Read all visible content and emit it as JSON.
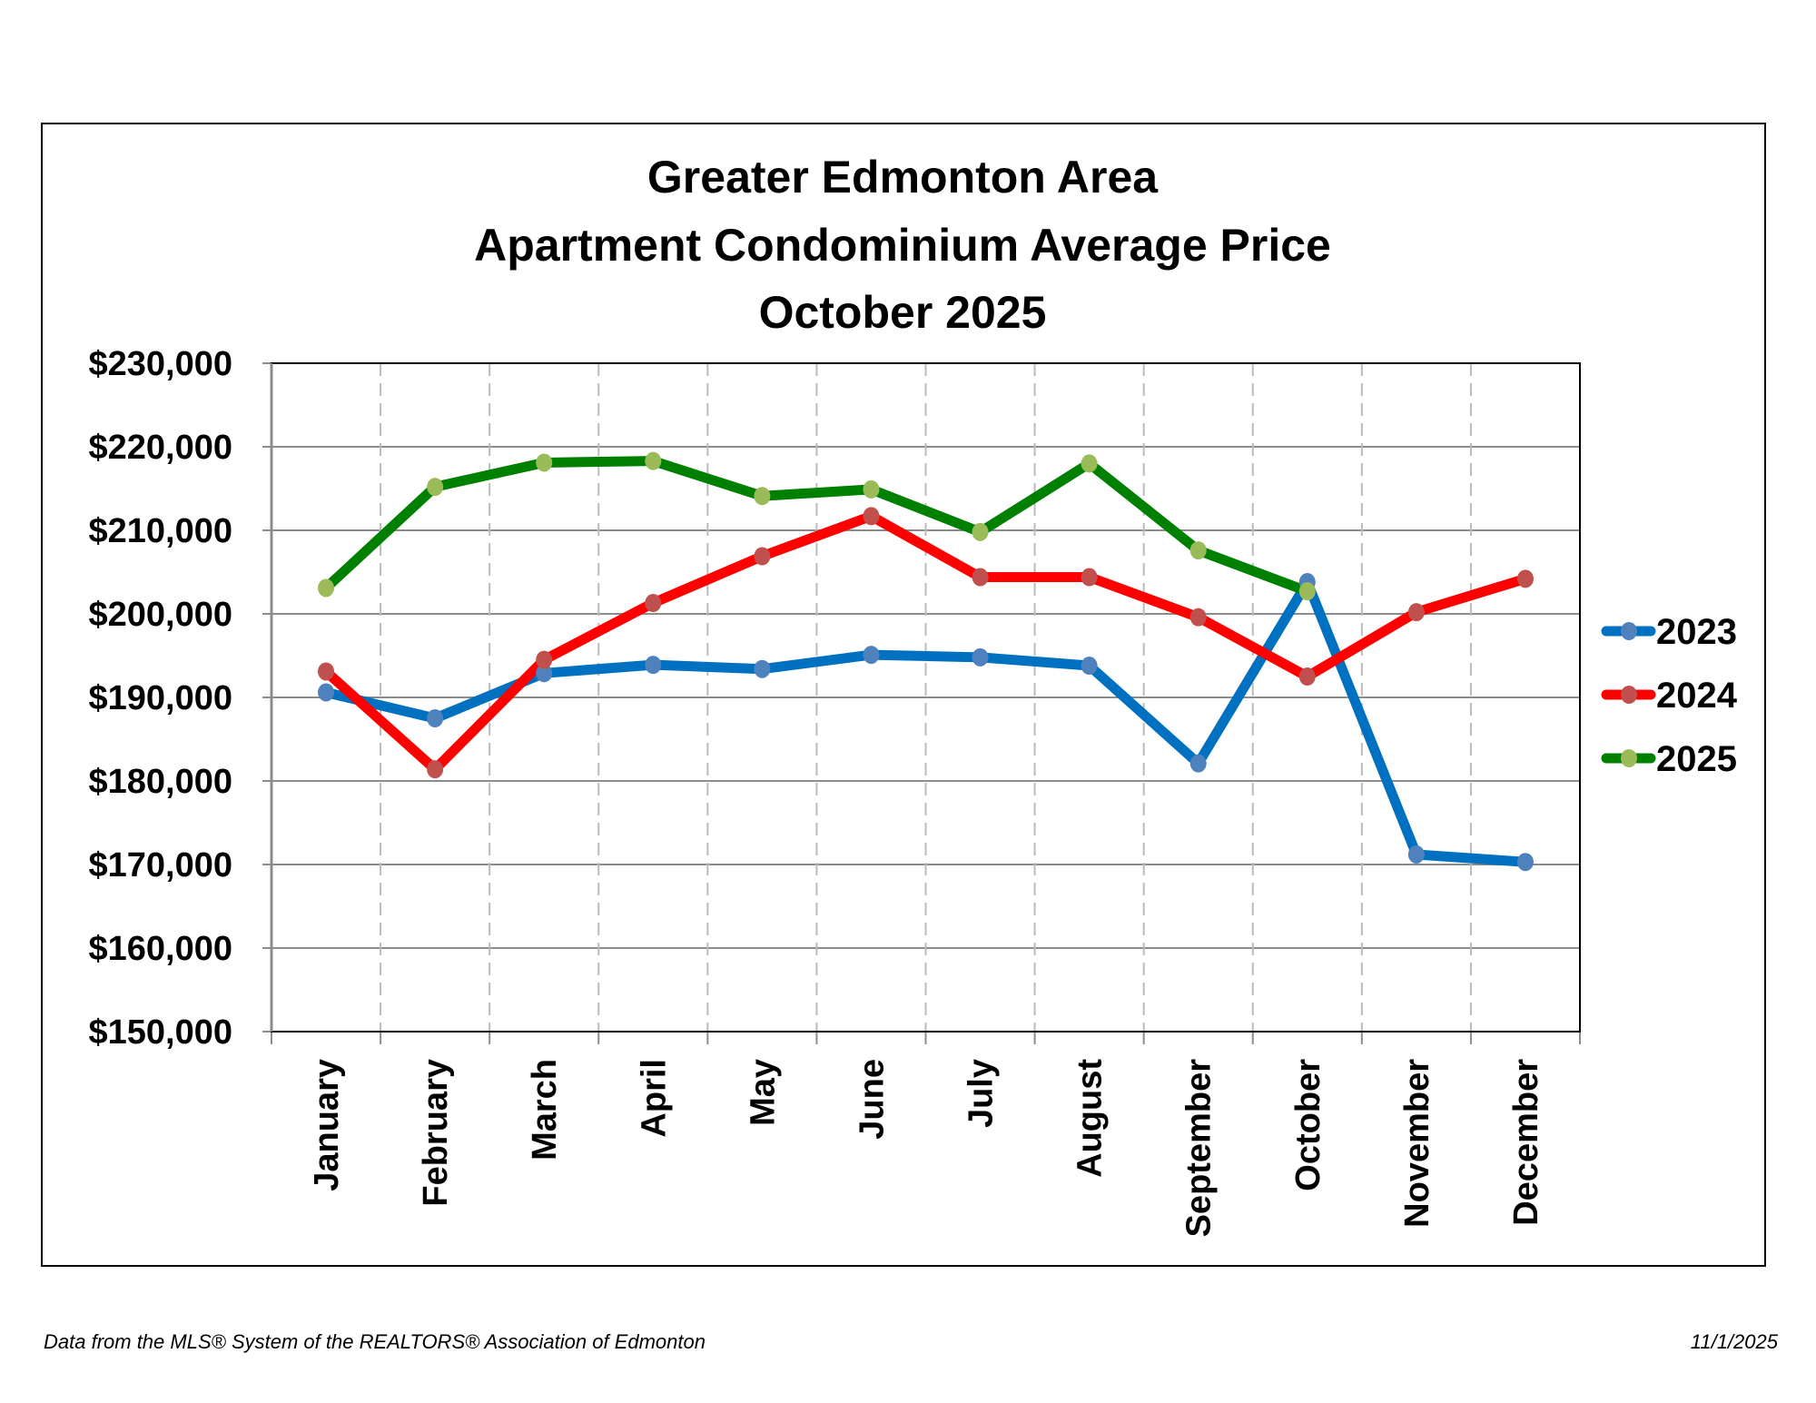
{
  "chart_data": {
    "type": "line",
    "title": [
      "Greater Edmonton Area",
      "Apartment Condominium Average Price",
      "October 2025"
    ],
    "xlabel": "",
    "ylabel": "",
    "categories": [
      "January",
      "February",
      "March",
      "April",
      "May",
      "June",
      "July",
      "August",
      "September",
      "October",
      "November",
      "December"
    ],
    "ylim": [
      150000,
      230000
    ],
    "yticks": [
      150000,
      160000,
      170000,
      180000,
      190000,
      200000,
      210000,
      220000,
      230000
    ],
    "ytick_labels": [
      "$150,000",
      "$160,000",
      "$170,000",
      "$180,000",
      "$190,000",
      "$200,000",
      "$210,000",
      "$220,000",
      "$230,000"
    ],
    "grid": {
      "horizontal": "solid",
      "vertical": "dashed"
    },
    "legend_position": "right",
    "series": [
      {
        "name": "2023",
        "line_color": "#0070C0",
        "marker_color": "#4F81BD",
        "values": [
          190600,
          187500,
          192900,
          193900,
          193400,
          195100,
          194800,
          193800,
          182100,
          203800,
          171200,
          170300
        ]
      },
      {
        "name": "2024",
        "line_color": "#FF0000",
        "marker_color": "#C0504D",
        "values": [
          193100,
          181400,
          194500,
          201300,
          206900,
          211700,
          204400,
          204400,
          199600,
          192500,
          200200,
          204200
        ]
      },
      {
        "name": "2025",
        "line_color": "#008000",
        "marker_color": "#9BBB59",
        "values": [
          203100,
          215200,
          218100,
          218300,
          214100,
          214900,
          209800,
          218000,
          207600,
          202700,
          null,
          null
        ]
      }
    ]
  },
  "footer": {
    "source": "Data from the MLS® System of the REALTORS® Association of Edmonton",
    "date": "11/1/2025"
  }
}
